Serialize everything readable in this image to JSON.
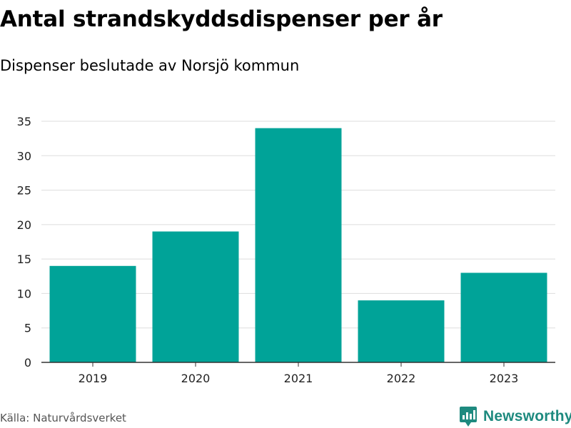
{
  "header": {
    "title": "Antal strandskyddsdispenser per år",
    "subtitle": "Dispenser beslutade av Norsjö kommun"
  },
  "footer": {
    "source": "Källa: Naturvårdsverket",
    "brand": "Newsworthy",
    "brand_icon": "newsworthy-logo-icon"
  },
  "colors": {
    "bar": "#00a398",
    "grid": "#dddddd",
    "axis": "#333333",
    "brand": "#1e8a7f"
  },
  "chart_data": {
    "type": "bar",
    "title": "Antal strandskyddsdispenser per år",
    "subtitle": "Dispenser beslutade av Norsjö kommun",
    "categories": [
      "2019",
      "2020",
      "2021",
      "2022",
      "2023"
    ],
    "values": [
      14,
      19,
      34,
      9,
      13
    ],
    "xlabel": "",
    "ylabel": "",
    "ylim": [
      0,
      35
    ],
    "yticks": [
      0,
      5,
      10,
      15,
      20,
      25,
      30,
      35
    ],
    "grid": true,
    "legend": "none"
  }
}
